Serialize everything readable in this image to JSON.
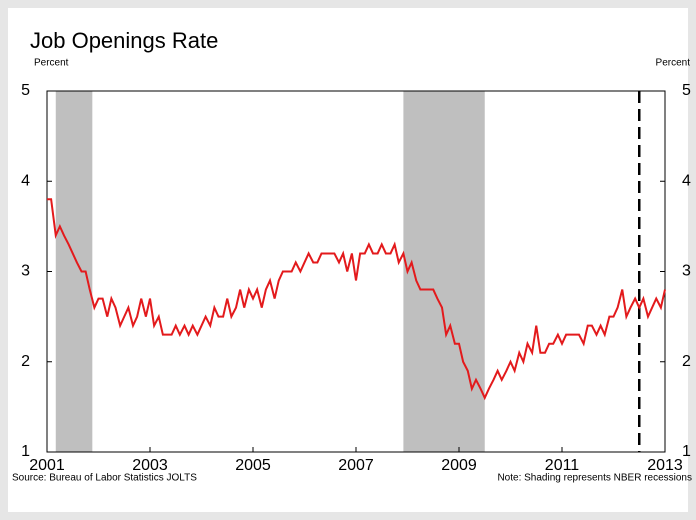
{
  "chart_data": {
    "type": "line",
    "title": "Job Openings Rate",
    "y_label": "Percent",
    "y2_label": "Percent",
    "source": "Source: Bureau of Labor Statistics JOLTS",
    "note": "Note: Shading represents NBER recessions",
    "xlim": [
      2001,
      2013
    ],
    "xticks": [
      2001,
      2003,
      2005,
      2007,
      2009,
      2011,
      2013
    ],
    "ylim": [
      1,
      5
    ],
    "yticks": [
      1,
      2,
      3,
      4,
      5
    ],
    "y2lim": [
      1,
      5
    ],
    "y2ticks": [
      1,
      2,
      3,
      4,
      5
    ],
    "recessions": [
      [
        2001.17,
        2001.88
      ],
      [
        2007.92,
        2009.5
      ]
    ],
    "recession_color": "#bfbfbf",
    "vline": 2012.5,
    "x": [
      2001.0,
      2001.08,
      2001.17,
      2001.25,
      2001.33,
      2001.42,
      2001.5,
      2001.58,
      2001.67,
      2001.75,
      2001.83,
      2001.92,
      2002.0,
      2002.08,
      2002.17,
      2002.25,
      2002.33,
      2002.42,
      2002.5,
      2002.58,
      2002.67,
      2002.75,
      2002.83,
      2002.92,
      2003.0,
      2003.08,
      2003.17,
      2003.25,
      2003.33,
      2003.42,
      2003.5,
      2003.58,
      2003.67,
      2003.75,
      2003.83,
      2003.92,
      2004.0,
      2004.08,
      2004.17,
      2004.25,
      2004.33,
      2004.42,
      2004.5,
      2004.58,
      2004.67,
      2004.75,
      2004.83,
      2004.92,
      2005.0,
      2005.08,
      2005.17,
      2005.25,
      2005.33,
      2005.42,
      2005.5,
      2005.58,
      2005.67,
      2005.75,
      2005.83,
      2005.92,
      2006.0,
      2006.08,
      2006.17,
      2006.25,
      2006.33,
      2006.42,
      2006.5,
      2006.58,
      2006.67,
      2006.75,
      2006.83,
      2006.92,
      2007.0,
      2007.08,
      2007.17,
      2007.25,
      2007.33,
      2007.42,
      2007.5,
      2007.58,
      2007.67,
      2007.75,
      2007.83,
      2007.92,
      2008.0,
      2008.08,
      2008.17,
      2008.25,
      2008.33,
      2008.42,
      2008.5,
      2008.58,
      2008.67,
      2008.75,
      2008.83,
      2008.92,
      2009.0,
      2009.08,
      2009.17,
      2009.25,
      2009.33,
      2009.42,
      2009.5,
      2009.58,
      2009.67,
      2009.75,
      2009.83,
      2009.92,
      2010.0,
      2010.08,
      2010.17,
      2010.25,
      2010.33,
      2010.42,
      2010.5,
      2010.58,
      2010.67,
      2010.75,
      2010.83,
      2010.92,
      2011.0,
      2011.08,
      2011.17,
      2011.25,
      2011.33,
      2011.42,
      2011.5,
      2011.58,
      2011.67,
      2011.75,
      2011.83,
      2011.92,
      2012.0,
      2012.08,
      2012.17,
      2012.25,
      2012.33,
      2012.42,
      2012.5,
      2012.58,
      2012.67,
      2012.75,
      2012.83,
      2012.92,
      2013.0
    ],
    "series": [
      {
        "color": "#e31a1c",
        "values": [
          3.8,
          3.8,
          3.4,
          3.5,
          3.4,
          3.3,
          3.2,
          3.1,
          3.0,
          3.0,
          2.8,
          2.6,
          2.7,
          2.7,
          2.5,
          2.7,
          2.6,
          2.4,
          2.5,
          2.6,
          2.4,
          2.5,
          2.7,
          2.5,
          2.7,
          2.4,
          2.5,
          2.3,
          2.3,
          2.3,
          2.4,
          2.3,
          2.4,
          2.3,
          2.4,
          2.3,
          2.4,
          2.5,
          2.4,
          2.6,
          2.5,
          2.5,
          2.7,
          2.5,
          2.6,
          2.8,
          2.6,
          2.8,
          2.7,
          2.8,
          2.6,
          2.8,
          2.9,
          2.7,
          2.9,
          3.0,
          3.0,
          3.0,
          3.1,
          3.0,
          3.1,
          3.2,
          3.1,
          3.1,
          3.2,
          3.2,
          3.2,
          3.2,
          3.1,
          3.2,
          3.0,
          3.2,
          2.9,
          3.2,
          3.2,
          3.3,
          3.2,
          3.2,
          3.3,
          3.2,
          3.2,
          3.3,
          3.1,
          3.2,
          3.0,
          3.1,
          2.9,
          2.8,
          2.8,
          2.8,
          2.8,
          2.7,
          2.6,
          2.3,
          2.4,
          2.2,
          2.2,
          2.0,
          1.9,
          1.7,
          1.8,
          1.7,
          1.6,
          1.7,
          1.8,
          1.9,
          1.8,
          1.9,
          2.0,
          1.9,
          2.1,
          2.0,
          2.2,
          2.1,
          2.4,
          2.1,
          2.1,
          2.2,
          2.2,
          2.3,
          2.2,
          2.3,
          2.3,
          2.3,
          2.3,
          2.2,
          2.4,
          2.4,
          2.3,
          2.4,
          2.3,
          2.5,
          2.5,
          2.6,
          2.8,
          2.5,
          2.6,
          2.7,
          2.6,
          2.7,
          2.5,
          2.6,
          2.7,
          2.6,
          2.8
        ]
      }
    ]
  }
}
